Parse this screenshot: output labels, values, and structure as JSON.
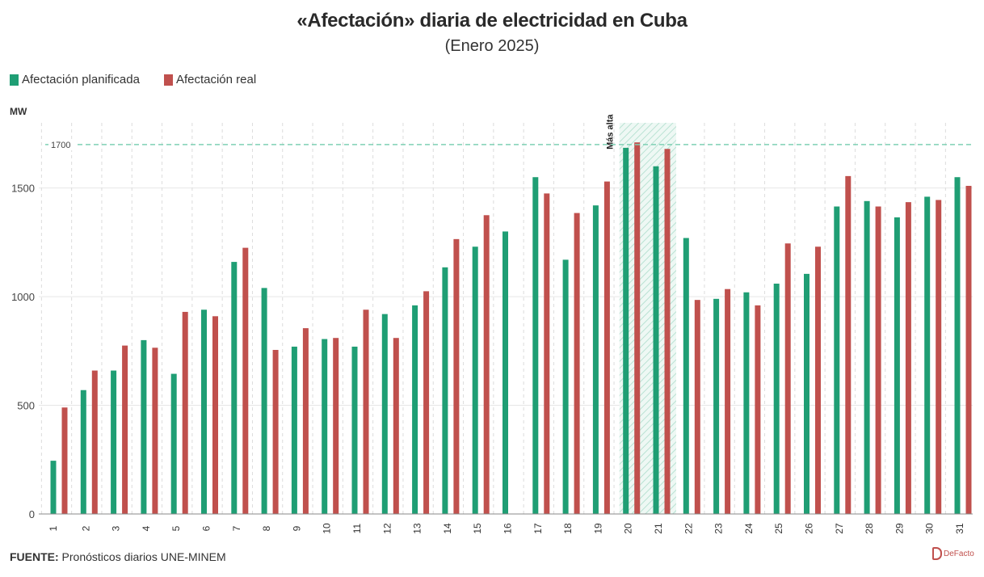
{
  "header": {
    "title": "«Afectación» diaria de electricidad en Cuba",
    "subtitle": "(Enero 2025)"
  },
  "legend": {
    "planned_label": "Afectación planificada",
    "real_label": "Afectación real"
  },
  "unit_label": "MW",
  "footer": {
    "source_label": "FUENTE:",
    "source_text": " Pronósticos diarios UNE-MINEM",
    "logo_text": "DeFacto"
  },
  "colors": {
    "planned": "#1f9e74",
    "real": "#c0504d",
    "reference_line": "#7fd0b4",
    "highlight": "#b9e2d3"
  },
  "chart_data": {
    "type": "bar",
    "title": "«Afectación» diaria de electricidad en Cuba",
    "subtitle": "(Enero 2025)",
    "ylabel": "MW",
    "ylim": [
      0,
      1800
    ],
    "yticks": [
      0,
      500,
      1000,
      1500
    ],
    "grid": true,
    "legend_position": "top-left",
    "categories": [
      "1",
      "2",
      "3",
      "4",
      "5",
      "6",
      "7",
      "8",
      "9",
      "10",
      "11",
      "12",
      "13",
      "14",
      "15",
      "16",
      "17",
      "18",
      "19",
      "20",
      "21",
      "22",
      "23",
      "24",
      "25",
      "26",
      "27",
      "28",
      "29",
      "30",
      "31"
    ],
    "series": [
      {
        "name": "Afectación planificada",
        "values": [
          245,
          570,
          660,
          800,
          645,
          940,
          1160,
          1040,
          770,
          805,
          770,
          920,
          960,
          1135,
          1230,
          1300,
          1550,
          1170,
          1420,
          1685,
          1600,
          1270,
          990,
          1020,
          1060,
          1105,
          1415,
          1440,
          1365,
          1460,
          1550
        ]
      },
      {
        "name": "Afectación real",
        "values": [
          490,
          660,
          775,
          765,
          930,
          910,
          1225,
          755,
          855,
          810,
          940,
          810,
          1025,
          1265,
          1375,
          null,
          1475,
          1385,
          1530,
          1710,
          1680,
          985,
          1035,
          960,
          1245,
          1230,
          1555,
          1415,
          1435,
          1445,
          1510
        ]
      }
    ],
    "reference_line": {
      "value": 1700,
      "label": "1700"
    },
    "annotation": {
      "label": "Más alta",
      "span": [
        "20",
        "21"
      ]
    }
  }
}
